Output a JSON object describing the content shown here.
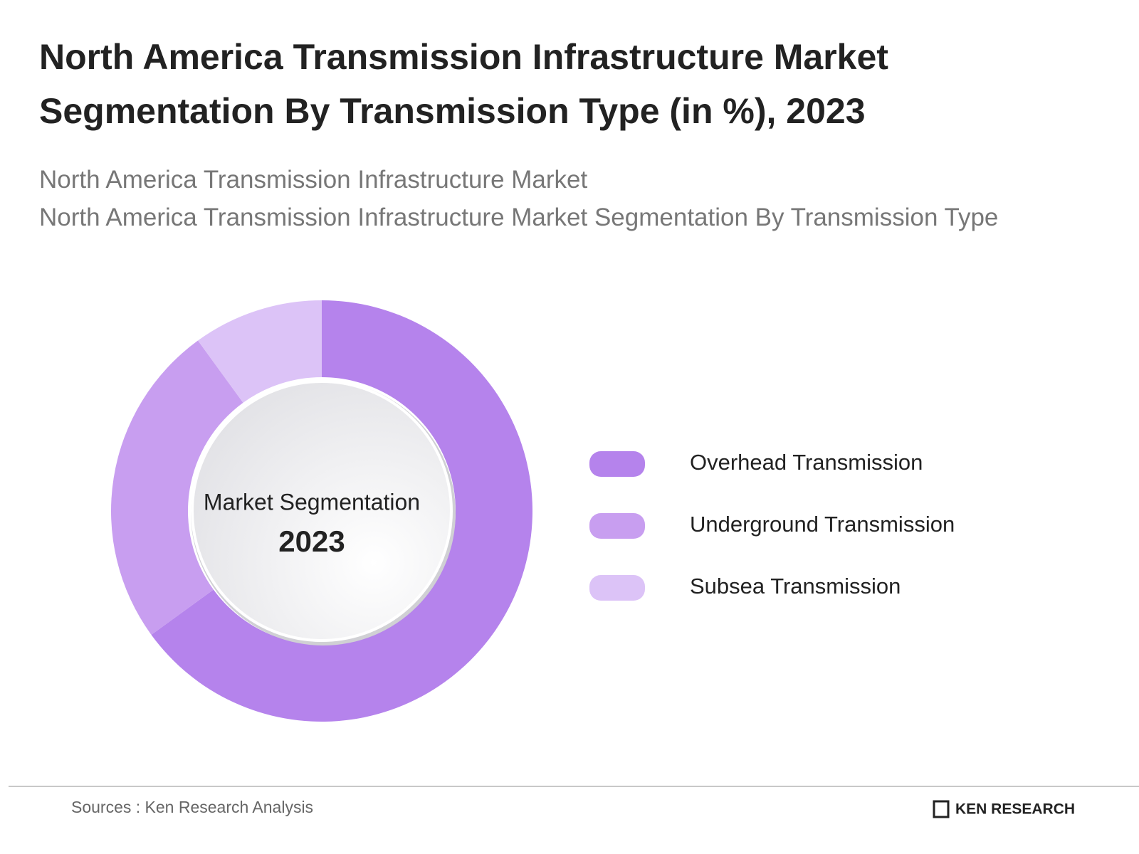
{
  "chart_data": {
    "type": "pie",
    "title": "North America Transmission Infrastructure Market Segmentation By Transmission Type (in %), 2023",
    "subtitle": [
      "North America Transmission Infrastructure Market",
      "North America Transmission Infrastructure Market Segmentation By Transmission Type"
    ],
    "center_label": "Market Segmentation",
    "center_year": "2023",
    "categories": [
      "Overhead Transmission",
      "Underground Transmission",
      "Subsea Transmission"
    ],
    "values": [
      65,
      25,
      10
    ],
    "colors": [
      "#b583ec",
      "#c89ef0",
      "#dcc3f7"
    ],
    "source": "Sources : Ken Research Analysis",
    "logo": "KEN RESEARCH"
  }
}
